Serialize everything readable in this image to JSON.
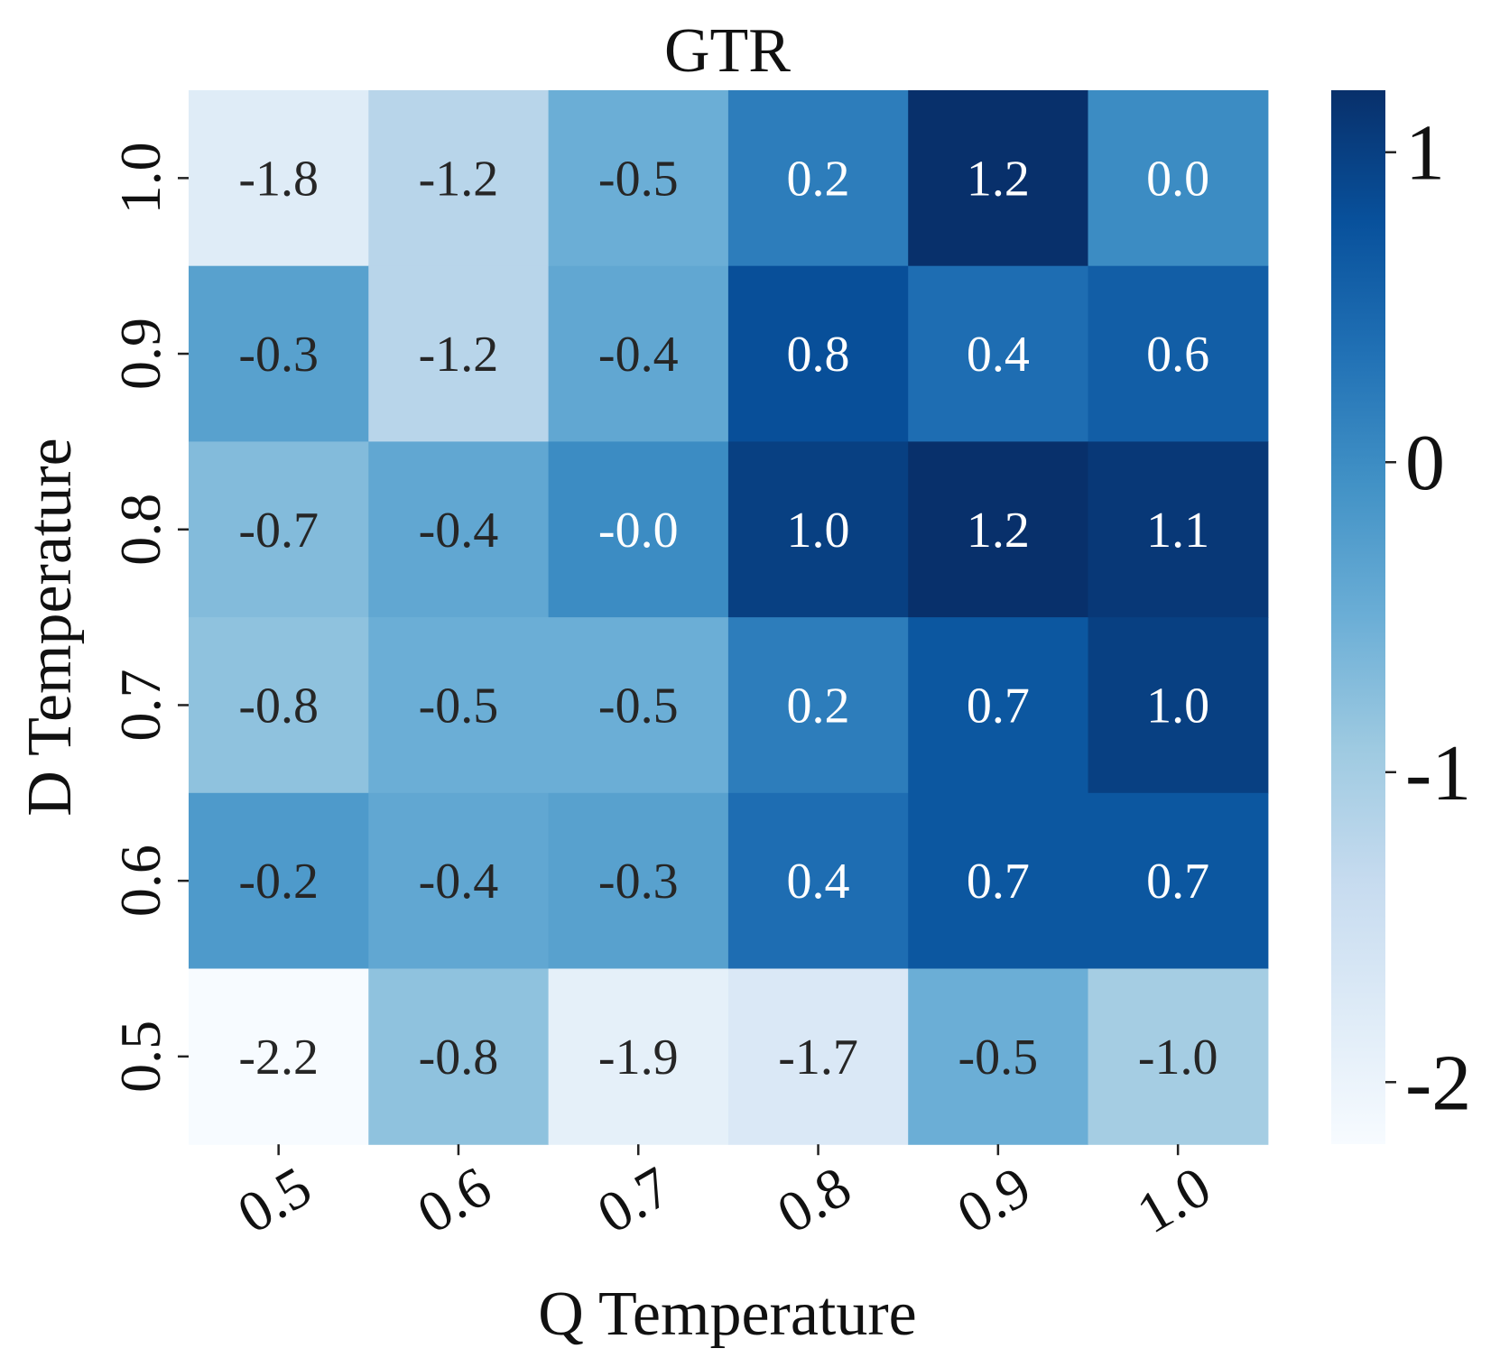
{
  "chart_data": {
    "type": "heatmap",
    "title": "GTR",
    "xlabel": "Q Temperature",
    "ylabel": "D Temperature",
    "x_categories": [
      "0.5",
      "0.6",
      "0.7",
      "0.8",
      "0.9",
      "1.0"
    ],
    "y_categories": [
      "1.0",
      "0.9",
      "0.8",
      "0.7",
      "0.6",
      "0.5"
    ],
    "values": [
      [
        -1.8,
        -1.2,
        -0.5,
        0.2,
        1.2,
        0.0
      ],
      [
        -0.3,
        -1.2,
        -0.4,
        0.8,
        0.4,
        0.6
      ],
      [
        -0.7,
        -0.4,
        -0.0,
        1.0,
        1.2,
        1.1
      ],
      [
        -0.8,
        -0.5,
        -0.5,
        0.2,
        0.7,
        1.0
      ],
      [
        -0.2,
        -0.4,
        -0.3,
        0.4,
        0.7,
        0.7
      ],
      [
        -2.2,
        -0.8,
        -1.9,
        -1.7,
        -0.5,
        -1.0
      ]
    ],
    "cell_labels": [
      [
        "-1.8",
        "-1.2",
        "-0.5",
        "0.2",
        "1.2",
        "0.0"
      ],
      [
        "-0.3",
        "-1.2",
        "-0.4",
        "0.8",
        "0.4",
        "0.6"
      ],
      [
        "-0.7",
        "-0.4",
        "-0.0",
        "1.0",
        "1.2",
        "1.1"
      ],
      [
        "-0.8",
        "-0.5",
        "-0.5",
        "0.2",
        "0.7",
        "1.0"
      ],
      [
        "-0.2",
        "-0.4",
        "-0.3",
        "0.4",
        "0.7",
        "0.7"
      ],
      [
        "-2.2",
        "-0.8",
        "-1.9",
        "-1.7",
        "-0.5",
        "-1.0"
      ]
    ],
    "colormap": "Blues",
    "vmin": -2.2,
    "vmax": 1.2,
    "colorbar": {
      "ticks": [
        1,
        0,
        -1,
        -2
      ],
      "tick_labels": [
        "1",
        "0",
        "-1",
        "-2"
      ]
    },
    "dark_text_color": "#262626",
    "light_text_color": "#ffffff"
  }
}
